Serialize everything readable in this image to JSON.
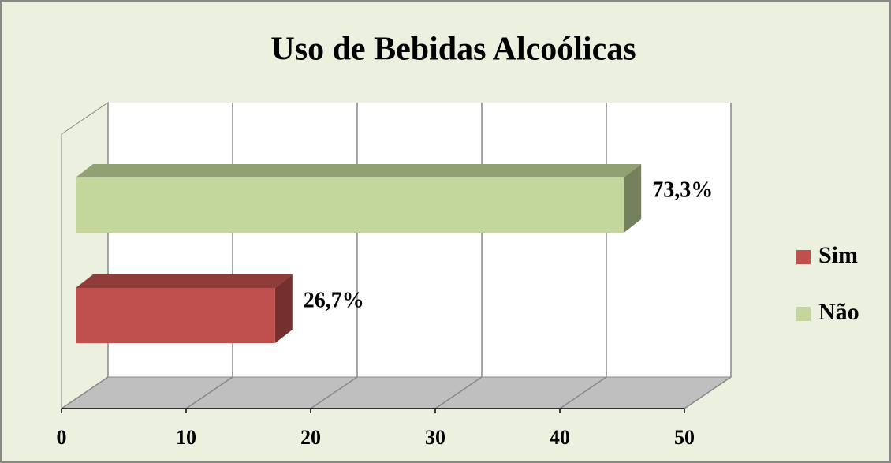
{
  "chart_data": {
    "type": "bar3d",
    "orientation": "horizontal",
    "title": "Uso de Bebidas Alcoólicas",
    "series": [
      {
        "name": "Sim",
        "color": "#c0504d",
        "values": [
          16
        ],
        "value_labels": [
          "26,7%"
        ]
      },
      {
        "name": "Não",
        "color": "#c3d69b",
        "values": [
          44
        ],
        "value_labels": [
          "73,3%"
        ]
      }
    ],
    "xlim": [
      0,
      50
    ],
    "xticks": [
      0,
      10,
      20,
      30,
      40,
      50
    ],
    "grid": true,
    "legend": "right"
  }
}
